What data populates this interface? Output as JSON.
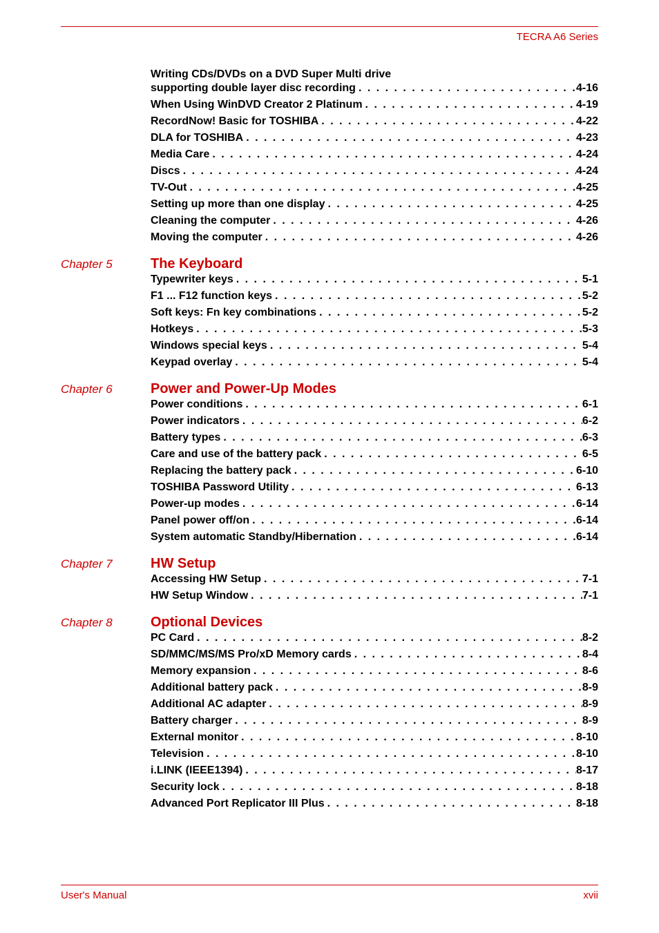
{
  "header": {
    "series": "TECRA A6 Series"
  },
  "footer": {
    "left": "User's Manual",
    "right": "xvii"
  },
  "colors": {
    "accent": "#cc0000",
    "text": "#000000",
    "bg": "#ffffff"
  },
  "preEntries": [
    {
      "label": "Writing CDs/DVDs on a DVD Super Multi drive",
      "label2": "supporting double layer disc recording",
      "page": "4-16",
      "multiline": true
    },
    {
      "label": "When Using WinDVD Creator 2 Platinum",
      "page": "4-19"
    },
    {
      "label": "RecordNow! Basic for TOSHIBA",
      "page": "4-22"
    },
    {
      "label": "DLA for TOSHIBA",
      "page": "4-23"
    },
    {
      "label": "Media Care",
      "page": "4-24"
    },
    {
      "label": "Discs",
      "page": "4-24"
    },
    {
      "label": "TV-Out",
      "page": "4-25"
    },
    {
      "label": "Setting up more than one display",
      "page": "4-25"
    },
    {
      "label": "Cleaning the computer",
      "page": "4-26"
    },
    {
      "label": "Moving the computer",
      "page": "4-26"
    }
  ],
  "chapters": [
    {
      "chap": "Chapter 5",
      "title": "The Keyboard",
      "entries": [
        {
          "label": "Typewriter keys",
          "page": "5-1"
        },
        {
          "label": "F1 ... F12 function keys",
          "page": "5-2"
        },
        {
          "label": "Soft keys: Fn key combinations",
          "page": "5-2"
        },
        {
          "label": "Hotkeys",
          "page": "5-3"
        },
        {
          "label": "Windows special keys",
          "page": "5-4"
        },
        {
          "label": "Keypad overlay",
          "page": "5-4"
        }
      ]
    },
    {
      "chap": "Chapter 6",
      "title": "Power and Power-Up Modes",
      "entries": [
        {
          "label": "Power conditions",
          "page": "6-1"
        },
        {
          "label": "Power indicators",
          "page": "6-2"
        },
        {
          "label": "Battery types",
          "page": "6-3"
        },
        {
          "label": "Care and use of the battery pack",
          "page": "6-5"
        },
        {
          "label": "Replacing the battery pack",
          "page": "6-10"
        },
        {
          "label": "TOSHIBA Password Utility",
          "page": "6-13"
        },
        {
          "label": "Power-up modes",
          "page": "6-14"
        },
        {
          "label": "Panel power off/on",
          "page": "6-14"
        },
        {
          "label": "System automatic Standby/Hibernation",
          "page": "6-14"
        }
      ]
    },
    {
      "chap": "Chapter 7",
      "title": "HW Setup",
      "entries": [
        {
          "label": "Accessing HW Setup",
          "page": "7-1"
        },
        {
          "label": "HW Setup Window",
          "page": "7-1"
        }
      ]
    },
    {
      "chap": "Chapter 8",
      "title": "Optional Devices",
      "entries": [
        {
          "label": "PC Card",
          "page": "8-2"
        },
        {
          "label": "SD/MMC/MS/MS Pro/xD Memory cards",
          "page": "8-4"
        },
        {
          "label": "Memory expansion",
          "page": "8-6"
        },
        {
          "label": "Additional battery pack",
          "page": "8-9"
        },
        {
          "label": "Additional AC adapter",
          "page": "8-9"
        },
        {
          "label": "Battery charger",
          "page": "8-9"
        },
        {
          "label": "External monitor",
          "page": "8-10"
        },
        {
          "label": "Television",
          "page": "8-10"
        },
        {
          "label": "i.LINK (IEEE1394)",
          "page": "8-17"
        },
        {
          "label": "Security lock",
          "page": "8-18"
        },
        {
          "label": "Advanced Port Replicator III Plus",
          "page": "8-18"
        }
      ]
    }
  ]
}
